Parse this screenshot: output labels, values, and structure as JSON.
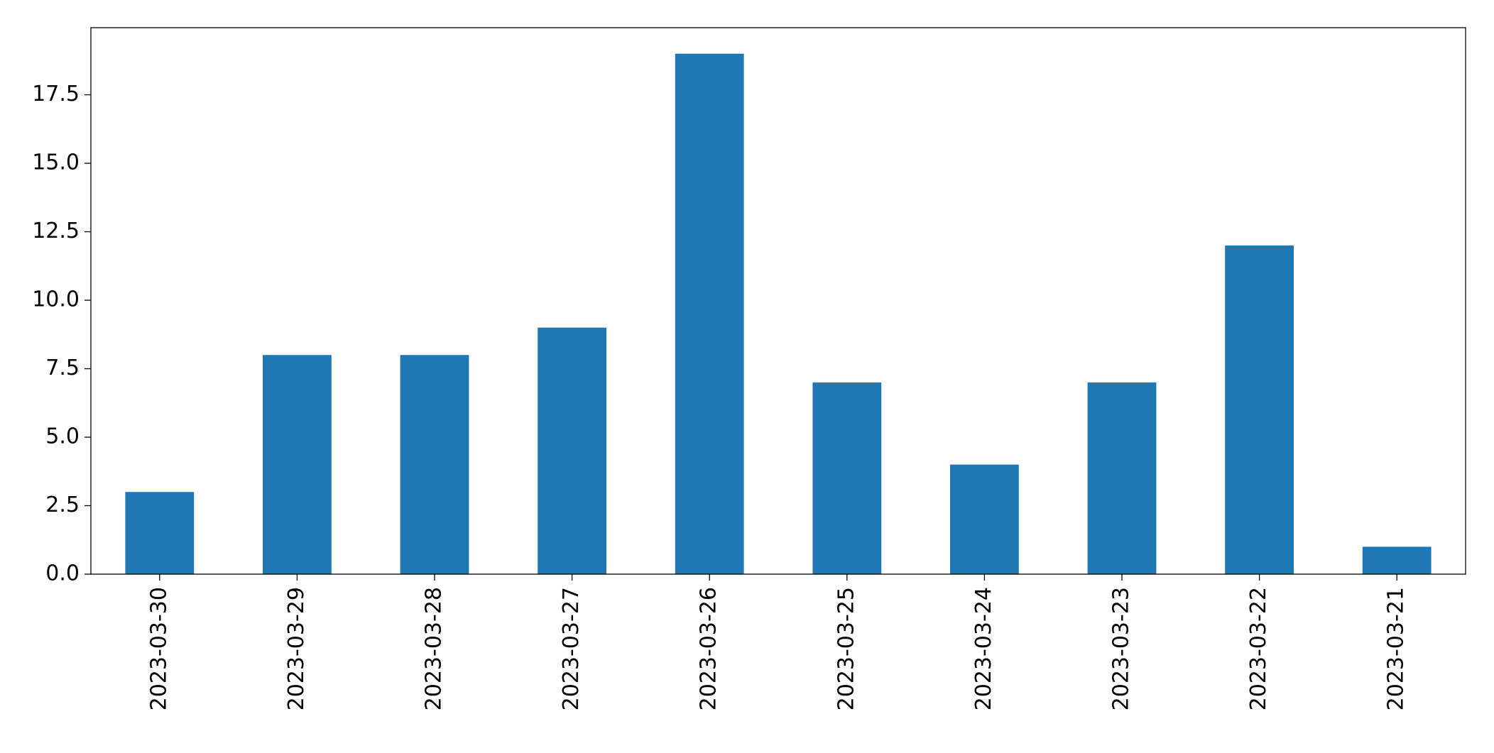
{
  "chart_data": {
    "type": "bar",
    "categories": [
      "2023-03-30",
      "2023-03-29",
      "2023-03-28",
      "2023-03-27",
      "2023-03-26",
      "2023-03-25",
      "2023-03-24",
      "2023-03-23",
      "2023-03-22",
      "2023-03-21"
    ],
    "values": [
      3,
      8,
      8,
      9,
      19,
      7,
      4,
      7,
      12,
      1
    ],
    "color": "#1f77b4",
    "ylim": [
      0,
      19.95
    ],
    "yticks": [
      {
        "value": 0,
        "label": "0.0"
      },
      2.5,
      {
        "value": 5,
        "label": "5.0"
      },
      7.5,
      {
        "value": 10,
        "label": "10.0"
      },
      12.5,
      {
        "value": 15,
        "label": "15.0"
      },
      17.5
    ],
    "grid": false
  }
}
